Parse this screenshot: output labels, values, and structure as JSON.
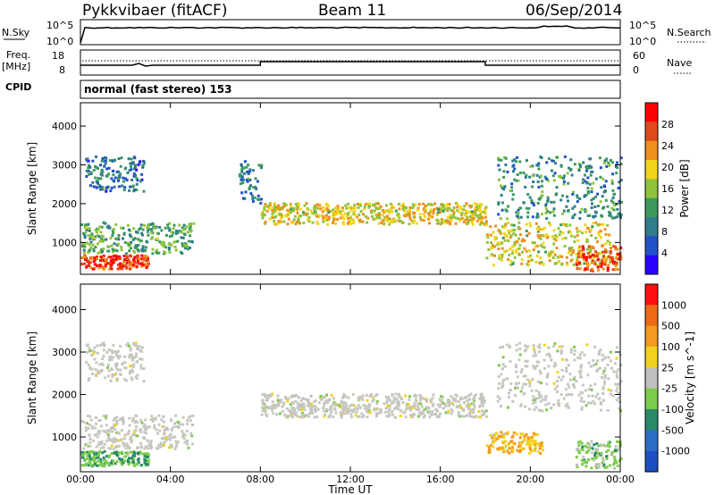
{
  "header": {
    "radar": "Pykkvibaer (fitACF)",
    "beam": "Beam 11",
    "date": "06/Sep/2014"
  },
  "noise_panel": {
    "left_label": "N.Sky",
    "left_ticks": [
      "10^5",
      "10^0"
    ],
    "right_label": "N.Search",
    "right_ticks": [
      "10^5",
      "10^0"
    ]
  },
  "freq_panel": {
    "left_label_1": "Freq.",
    "left_label_2": "[MHz]",
    "left_ticks": [
      "18",
      "8"
    ],
    "right_label": "Nave",
    "right_ticks": [
      "60",
      "0"
    ]
  },
  "cpid": {
    "label": "CPID",
    "text": "normal (fast stereo) 153"
  },
  "colors": {
    "power_scale": [
      "#2a00ff",
      "#2252c8",
      "#2f7d8c",
      "#3c9a5c",
      "#8fc43a",
      "#f2d51a",
      "#f08f1c",
      "#e04a1a",
      "#ff0000"
    ],
    "velocity_scale": [
      "#1c4fc4",
      "#2d6ec8",
      "#2a8a6a",
      "#7ccc4a",
      "#c0c0c0",
      "#f2d21e",
      "#f49a1e",
      "#f06a14",
      "#ff1010"
    ],
    "ground_scatter": "#c8c8c0"
  },
  "chart_data": [
    {
      "type": "heatmap",
      "title": "",
      "xlabel": "",
      "ylabel": "Slant Range [km]",
      "xlim": [
        "00:00",
        "24:00"
      ],
      "ylim": [
        180,
        4600
      ],
      "x_ticks": [
        "00:00",
        "04:00",
        "08:00",
        "12:00",
        "16:00",
        "20:00",
        "00:00"
      ],
      "y_ticks": [
        "1000",
        "2000",
        "3000",
        "4000"
      ],
      "colorbar": {
        "label": "Power [dB]",
        "ticks": [
          "28",
          "24",
          "20",
          "16",
          "12",
          "8",
          "4"
        ],
        "range": [
          0,
          30
        ]
      },
      "bands": [
        {
          "t_start": 0.0,
          "t_end": 3.0,
          "range_low": 300,
          "range_high": 650,
          "power": 26
        },
        {
          "t_start": 0.0,
          "t_end": 5.0,
          "range_low": 700,
          "range_high": 1500,
          "power": 12
        },
        {
          "t_start": 0.2,
          "t_end": 2.8,
          "range_low": 2300,
          "range_high": 3200,
          "power": 8
        },
        {
          "t_start": 7.0,
          "t_end": 8.0,
          "range_low": 2000,
          "range_high": 3100,
          "power": 9
        },
        {
          "t_start": 8.0,
          "t_end": 18.0,
          "range_low": 1450,
          "range_high": 2000,
          "power": 18
        },
        {
          "t_start": 18.0,
          "t_end": 23.5,
          "range_low": 400,
          "range_high": 1500,
          "power": 18
        },
        {
          "t_start": 18.5,
          "t_end": 24.0,
          "range_low": 1600,
          "range_high": 3200,
          "power": 10
        },
        {
          "t_start": 22.0,
          "t_end": 24.0,
          "range_low": 250,
          "range_high": 900,
          "power": 24
        }
      ]
    },
    {
      "type": "heatmap",
      "title": "",
      "xlabel": "Time UT",
      "ylabel": "Slant Range [km]",
      "xlim": [
        "00:00",
        "24:00"
      ],
      "ylim": [
        180,
        4600
      ],
      "x_ticks": [
        "00:00",
        "04:00",
        "08:00",
        "12:00",
        "16:00",
        "20:00",
        "00:00"
      ],
      "y_ticks": [
        "1000",
        "2000",
        "3000",
        "4000"
      ],
      "colorbar": {
        "label": "Velocity [m s^-1]",
        "ticks": [
          "1000",
          "500",
          "100",
          "25",
          "-25",
          "-100",
          "-500",
          "-1000"
        ],
        "range": [
          -1000,
          1000
        ]
      },
      "bands": [
        {
          "t_start": 0.0,
          "t_end": 3.0,
          "range_low": 300,
          "range_high": 650,
          "velocity": -300
        },
        {
          "t_start": 0.0,
          "t_end": 5.0,
          "range_low": 700,
          "range_high": 1500,
          "velocity": 0
        },
        {
          "t_start": 0.2,
          "t_end": 2.8,
          "range_low": 2300,
          "range_high": 3200,
          "velocity": 0
        },
        {
          "t_start": 8.0,
          "t_end": 18.0,
          "range_low": 1450,
          "range_high": 2000,
          "velocity": 0
        },
        {
          "t_start": 18.0,
          "t_end": 20.5,
          "range_low": 600,
          "range_high": 1100,
          "velocity": 300
        },
        {
          "t_start": 18.5,
          "t_end": 24.0,
          "range_low": 1600,
          "range_high": 3200,
          "velocity": 0
        },
        {
          "t_start": 22.0,
          "t_end": 24.0,
          "range_low": 250,
          "range_high": 900,
          "velocity": -200
        }
      ]
    }
  ]
}
